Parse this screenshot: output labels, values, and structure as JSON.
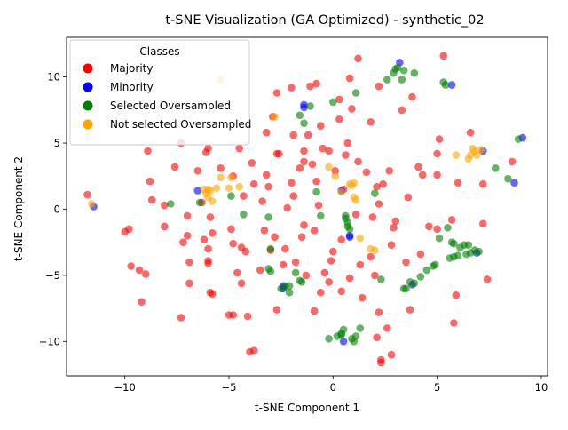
{
  "chart_data": {
    "type": "scatter",
    "title": "t-SNE Visualization (GA Optimized) - synthetic_02",
    "xlabel": "t-SNE Component 1",
    "ylabel": "t-SNE Component 2",
    "xlim": [
      -12.8,
      10.3
    ],
    "ylim": [
      -12.6,
      13.0
    ],
    "xticks": [
      -10,
      -5,
      0,
      5,
      10
    ],
    "yticks": [
      -10,
      -5,
      0,
      5,
      10
    ],
    "grid": false,
    "legend": {
      "title": "Classes",
      "position": "top-left",
      "entries": [
        "Majority",
        "Minority",
        "Selected Oversampled",
        "Not selected Oversampled"
      ]
    },
    "series": [
      {
        "name": "Majority",
        "color": "#ff0000",
        "points": [
          [
            -11.8,
            1.1
          ],
          [
            -10.0,
            -1.7
          ],
          [
            -9.8,
            -1.5
          ],
          [
            -9.7,
            -4.3
          ],
          [
            -9.3,
            -4.6
          ],
          [
            -9.2,
            -7.0
          ],
          [
            -9.0,
            -4.9
          ],
          [
            -8.9,
            4.4
          ],
          [
            -8.8,
            2.1
          ],
          [
            -8.7,
            0.7
          ],
          [
            -8.1,
            -1.3
          ],
          [
            -8.1,
            0.3
          ],
          [
            -7.6,
            3.2
          ],
          [
            -7.3,
            5.0
          ],
          [
            -7.3,
            -8.2
          ],
          [
            -7.2,
            -2.5
          ],
          [
            -7.0,
            -0.5
          ],
          [
            -7.0,
            -2.0
          ],
          [
            -6.9,
            -4.0
          ],
          [
            -6.9,
            -5.6
          ],
          [
            -6.5,
            2.9
          ],
          [
            -6.3,
            0.5
          ],
          [
            -6.2,
            -2.3
          ],
          [
            -6.1,
            4.3
          ],
          [
            -6.0,
            4.6
          ],
          [
            -6.0,
            -3.0
          ],
          [
            -6.0,
            -4.1
          ],
          [
            -6.0,
            -3.9
          ],
          [
            -5.9,
            -0.6
          ],
          [
            -5.9,
            -6.3
          ],
          [
            -5.8,
            -6.4
          ],
          [
            -5.8,
            -1.8
          ],
          [
            -5.4,
            3.1
          ],
          [
            -5.0,
            -8.0
          ],
          [
            -4.9,
            -1.5
          ],
          [
            -4.8,
            2.5
          ],
          [
            -4.8,
            -8.0
          ],
          [
            -4.8,
            -2.6
          ],
          [
            -4.6,
            -4.8
          ],
          [
            -4.5,
            4.6
          ],
          [
            -4.4,
            -2.9
          ],
          [
            -4.4,
            -5.6
          ],
          [
            -4.3,
            1.0
          ],
          [
            -4.2,
            -3.2
          ],
          [
            -4.1,
            -8.1
          ],
          [
            -3.9,
            3.5
          ],
          [
            -4.0,
            -10.8
          ],
          [
            -3.8,
            -10.7
          ],
          [
            -3.8,
            1.9
          ],
          [
            -3.5,
            -4.6
          ],
          [
            -3.4,
            0.6
          ],
          [
            -3.3,
            -1.6
          ],
          [
            -3.2,
            2.6
          ],
          [
            -3.1,
            1.7
          ],
          [
            -2.8,
            -2.1
          ],
          [
            -2.7,
            -7.6
          ],
          [
            -2.7,
            4.2
          ],
          [
            -2.6,
            4.2
          ],
          [
            -2.4,
            -4.2
          ],
          [
            -2.3,
            -3.0
          ],
          [
            -2.2,
            0.1
          ],
          [
            -2.0,
            2.0
          ],
          [
            -1.9,
            5.6
          ],
          [
            -1.9,
            1.0
          ],
          [
            -1.8,
            -4.0
          ],
          [
            -1.6,
            3.1
          ],
          [
            -1.5,
            -2.1
          ],
          [
            -1.4,
            4.4
          ],
          [
            -1.4,
            -1.2
          ],
          [
            -1.4,
            3.6
          ],
          [
            -1.2,
            5.6
          ],
          [
            -1.0,
            3.4
          ],
          [
            -0.9,
            -1.6
          ],
          [
            -0.9,
            -7.7
          ],
          [
            -0.8,
            2.1
          ],
          [
            -0.7,
            0.3
          ],
          [
            -0.6,
            -6.3
          ],
          [
            -0.5,
            4.6
          ],
          [
            -0.4,
            -4.8
          ],
          [
            -0.2,
            4.4
          ],
          [
            -0.1,
            -3.9
          ],
          [
            0.1,
            2.9
          ],
          [
            0.3,
            6.8
          ],
          [
            0.4,
            -6.2
          ],
          [
            0.4,
            -2.3
          ],
          [
            0.5,
            1.5
          ],
          [
            0.7,
            5.0
          ],
          [
            0.8,
            -5.2
          ],
          [
            0.9,
            7.6
          ],
          [
            1.1,
            -0.4
          ],
          [
            1.2,
            3.6
          ],
          [
            1.3,
            -4.2
          ],
          [
            1.4,
            -6.7
          ],
          [
            1.6,
            2.8
          ],
          [
            1.8,
            -3.6
          ],
          [
            1.8,
            6.6
          ],
          [
            1.9,
            -0.6
          ],
          [
            2.0,
            -5.0
          ],
          [
            2.1,
            -9.7
          ],
          [
            2.2,
            0.4
          ],
          [
            2.2,
            -7.8
          ],
          [
            2.3,
            -11.4
          ],
          [
            2.3,
            -11.6
          ],
          [
            2.4,
            1.9
          ],
          [
            2.6,
            -9.0
          ],
          [
            2.7,
            2.9
          ],
          [
            2.8,
            -2.7
          ],
          [
            2.8,
            -11.0
          ],
          [
            2.9,
            -1.4
          ],
          [
            3.0,
            -0.9
          ],
          [
            3.3,
            7.5
          ],
          [
            3.5,
            -4.0
          ],
          [
            3.6,
            0.9
          ],
          [
            3.7,
            -7.6
          ],
          [
            3.8,
            8.5
          ],
          [
            4.1,
            3.2
          ],
          [
            4.2,
            -3.4
          ],
          [
            4.3,
            2.6
          ],
          [
            4.6,
            -1.3
          ],
          [
            5.0,
            2.6
          ],
          [
            5.0,
            4.2
          ],
          [
            5.0,
            -1.5
          ],
          [
            5.1,
            5.3
          ],
          [
            5.3,
            11.6
          ],
          [
            5.7,
            -0.8
          ],
          [
            5.8,
            -8.6
          ],
          [
            5.9,
            -6.5
          ],
          [
            6.0,
            2.0
          ],
          [
            6.6,
            5.8
          ],
          [
            7.2,
            1.9
          ],
          [
            7.2,
            -1.1
          ],
          [
            7.4,
            -5.3
          ],
          [
            8.6,
            3.6
          ],
          [
            -1.1,
            9.3
          ],
          [
            0.8,
            9.9
          ],
          [
            1.2,
            11.4
          ],
          [
            0.3,
            8.3
          ],
          [
            -2.0,
            9.2
          ],
          [
            -0.8,
            9.5
          ],
          [
            2.2,
            9.3
          ],
          [
            -2.7,
            8.8
          ],
          [
            0.6,
            4.1
          ],
          [
            -0.6,
            6.3
          ],
          [
            2.1,
            1.7
          ],
          [
            -0.2,
            -5.5
          ],
          [
            -2.9,
            7.0
          ],
          [
            -3.2,
            5.8
          ],
          [
            0.0,
            -3.2
          ],
          [
            -1.3,
            -5.0
          ],
          [
            -3.0,
            -3.1
          ]
        ]
      },
      {
        "name": "Minority",
        "color": "#0000ff",
        "points": [
          [
            -11.5,
            0.2
          ],
          [
            -6.5,
            1.4
          ],
          [
            -2.4,
            -6.0
          ],
          [
            -2.4,
            -5.8
          ],
          [
            -1.4,
            7.9
          ],
          [
            -1.4,
            7.7
          ],
          [
            0.4,
            1.4
          ],
          [
            0.5,
            -10.0
          ],
          [
            0.8,
            -2.1
          ],
          [
            0.8,
            -2.0
          ],
          [
            3.2,
            11.1
          ],
          [
            3.8,
            -5.7
          ],
          [
            5.7,
            9.4
          ],
          [
            6.9,
            -3.3
          ],
          [
            7.2,
            4.4
          ],
          [
            8.7,
            2.0
          ],
          [
            9.1,
            5.4
          ]
        ]
      },
      {
        "name": "Selected Oversampled",
        "color": "#008000",
        "points": [
          [
            -7.8,
            0.4
          ],
          [
            -6.4,
            0.5
          ],
          [
            -4.9,
            1.0
          ],
          [
            -4.3,
            -0.4
          ],
          [
            -3.1,
            -0.6
          ],
          [
            -3.1,
            -4.5
          ],
          [
            -3.0,
            -4.7
          ],
          [
            -2.5,
            -6.0
          ],
          [
            -2.3,
            -5.8
          ],
          [
            -2.1,
            -6.3
          ],
          [
            -2.1,
            -5.8
          ],
          [
            -1.8,
            -4.8
          ],
          [
            -1.6,
            -5.4
          ],
          [
            -1.5,
            -5.5
          ],
          [
            -1.6,
            7.1
          ],
          [
            -1.4,
            6.5
          ],
          [
            -1.1,
            7.8
          ],
          [
            -0.8,
            1.3
          ],
          [
            -0.6,
            -0.5
          ],
          [
            -0.2,
            -9.8
          ],
          [
            0.0,
            8.1
          ],
          [
            0.2,
            -9.6
          ],
          [
            0.4,
            -9.5
          ],
          [
            0.4,
            -9.4
          ],
          [
            0.5,
            -9.1
          ],
          [
            0.6,
            -0.5
          ],
          [
            0.6,
            -0.7
          ],
          [
            0.7,
            -1.0
          ],
          [
            0.7,
            -1.3
          ],
          [
            0.8,
            -1.5
          ],
          [
            0.9,
            -9.8
          ],
          [
            1.0,
            -10.0
          ],
          [
            1.1,
            -9.6
          ],
          [
            1.1,
            8.8
          ],
          [
            1.3,
            -9.0
          ],
          [
            2.0,
            1.2
          ],
          [
            2.3,
            -5.3
          ],
          [
            2.6,
            9.8
          ],
          [
            2.9,
            10.3
          ],
          [
            3.0,
            10.6
          ],
          [
            3.1,
            10.7
          ],
          [
            3.3,
            9.8
          ],
          [
            3.4,
            -6.0
          ],
          [
            3.5,
            -6.0
          ],
          [
            3.7,
            -5.5
          ],
          [
            3.9,
            -5.6
          ],
          [
            3.9,
            10.3
          ],
          [
            4.2,
            -5.1
          ],
          [
            4.5,
            -4.6
          ],
          [
            4.8,
            -4.3
          ],
          [
            4.9,
            -4.2
          ],
          [
            5.1,
            -2.2
          ],
          [
            5.3,
            9.6
          ],
          [
            5.5,
            -1.4
          ],
          [
            5.6,
            -3.7
          ],
          [
            5.7,
            -2.5
          ],
          [
            5.8,
            -3.6
          ],
          [
            5.8,
            -2.6
          ],
          [
            6.0,
            -3.5
          ],
          [
            6.1,
            -2.9
          ],
          [
            6.3,
            -2.7
          ],
          [
            6.4,
            -3.4
          ],
          [
            6.5,
            -2.7
          ],
          [
            6.6,
            -3.3
          ],
          [
            6.8,
            -3.1
          ],
          [
            7.0,
            -3.2
          ],
          [
            7.8,
            3.1
          ],
          [
            8.4,
            2.3
          ],
          [
            8.9,
            5.3
          ],
          [
            3.4,
            10.5
          ],
          [
            5.4,
            9.4
          ],
          [
            -3.0,
            -3.0
          ]
        ]
      },
      {
        "name": "Not selected Oversampled",
        "color": "#ffa500",
        "points": [
          [
            -11.6,
            0.4
          ],
          [
            -6.0,
            1.5
          ],
          [
            -6.1,
            1.2
          ],
          [
            -6.0,
            0.9
          ],
          [
            -6.2,
            1.5
          ],
          [
            -5.9,
            1.4
          ],
          [
            -5.8,
            0.6
          ],
          [
            -5.6,
            1.6
          ],
          [
            -5.4,
            2.4
          ],
          [
            -5.0,
            1.6
          ],
          [
            -5.4,
            9.8
          ],
          [
            -4.9,
            2.4
          ],
          [
            -4.5,
            1.7
          ],
          [
            -2.8,
            7.0
          ],
          [
            -0.2,
            3.2
          ],
          [
            0.1,
            2.5
          ],
          [
            0.4,
            1.3
          ],
          [
            0.8,
            1.9
          ],
          [
            0.9,
            1.8
          ],
          [
            1.0,
            2.0
          ],
          [
            1.0,
            0.9
          ],
          [
            1.1,
            0.7
          ],
          [
            1.3,
            -2.2
          ],
          [
            1.8,
            -3.0
          ],
          [
            2.0,
            -3.1
          ],
          [
            5.9,
            4.1
          ],
          [
            6.5,
            3.8
          ],
          [
            6.6,
            4.1
          ],
          [
            6.7,
            4.6
          ],
          [
            6.9,
            4.1
          ],
          [
            7.1,
            4.5
          ],
          [
            6.8,
            4.4
          ]
        ]
      }
    ]
  }
}
